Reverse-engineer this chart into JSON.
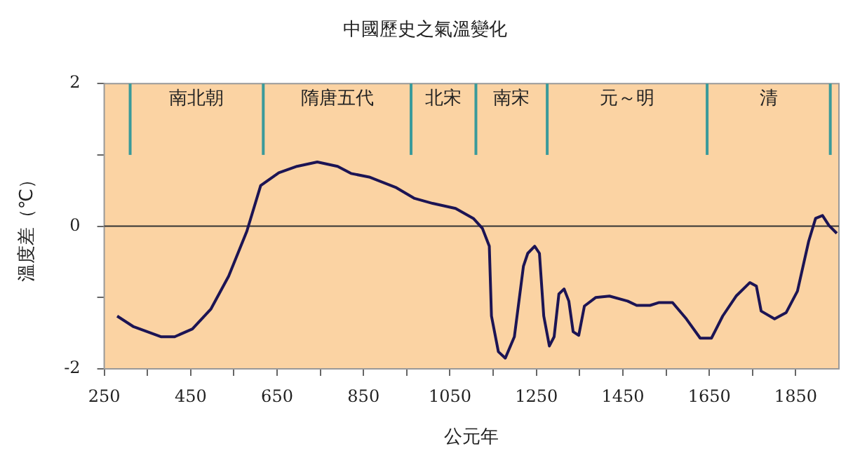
{
  "chart_data": {
    "type": "line",
    "title": "中國歷史之氣溫變化",
    "xlabel": "公元年",
    "ylabel": "溫度差（℃）",
    "x": [
      280,
      318,
      381,
      413,
      454,
      497,
      538,
      580,
      612,
      654,
      696,
      743,
      790,
      821,
      863,
      926,
      968,
      1010,
      1063,
      1104,
      1125,
      1141,
      1146,
      1162,
      1178,
      1199,
      1220,
      1230,
      1246,
      1257,
      1267,
      1280,
      1291,
      1302,
      1314,
      1325,
      1335,
      1348,
      1361,
      1387,
      1419,
      1461,
      1482,
      1513,
      1534,
      1565,
      1597,
      1629,
      1655,
      1681,
      1712,
      1744,
      1759,
      1770,
      1801,
      1828,
      1854,
      1880,
      1896,
      1912,
      1927,
      1945
    ],
    "series": [
      {
        "color": "#1c1454",
        "values": [
          -1.26,
          -1.41,
          -1.55,
          -1.55,
          -1.44,
          -1.16,
          -0.7,
          -0.07,
          0.57,
          0.75,
          0.84,
          0.9,
          0.84,
          0.74,
          0.69,
          0.54,
          0.39,
          0.32,
          0.25,
          0.11,
          -0.03,
          -0.28,
          -1.26,
          -1.76,
          -1.85,
          -1.55,
          -0.56,
          -0.38,
          -0.28,
          -0.38,
          -1.26,
          -1.68,
          -1.55,
          -0.95,
          -0.88,
          -1.05,
          -1.48,
          -1.53,
          -1.12,
          -1.0,
          -0.98,
          -1.05,
          -1.11,
          -1.11,
          -1.07,
          -1.07,
          -1.3,
          -1.57,
          -1.57,
          -1.26,
          -0.98,
          -0.79,
          -0.84,
          -1.19,
          -1.3,
          -1.21,
          -0.91,
          -0.21,
          0.11,
          0.15,
          0.01,
          -0.1
        ]
      }
    ],
    "xlim": [
      250,
      1950
    ],
    "xticks": [
      250,
      {
        "value": 350,
        "label": null
      },
      450,
      {
        "value": 550,
        "label": null
      },
      650,
      {
        "value": 750,
        "label": null
      },
      850,
      {
        "value": 950,
        "label": null
      },
      1050,
      {
        "value": 1150,
        "label": null
      },
      1250,
      {
        "value": 1350,
        "label": null
      },
      1450,
      {
        "value": 1550,
        "label": null
      },
      1650,
      {
        "value": 1750,
        "label": null
      },
      1850
    ],
    "ylim": [
      -2,
      2
    ],
    "yticks": [
      -2,
      {
        "value": -1,
        "label": null
      },
      0,
      {
        "value": 1,
        "label": null
      },
      2
    ],
    "grid": false,
    "legend": false,
    "marker": "none",
    "line_style": "solid",
    "ref_lines": [
      {
        "axis": "y",
        "value": 0,
        "color": "#333333"
      },
      {
        "axis": "x",
        "value": 310,
        "color": "#3a9a9a"
      },
      {
        "axis": "x",
        "value": 618,
        "color": "#3a9a9a"
      },
      {
        "axis": "x",
        "value": 960,
        "color": "#3a9a9a"
      },
      {
        "axis": "x",
        "value": 1110,
        "color": "#3a9a9a"
      },
      {
        "axis": "x",
        "value": 1275,
        "color": "#3a9a9a"
      },
      {
        "axis": "x",
        "value": 1645,
        "color": "#3a9a9a"
      },
      {
        "axis": "x",
        "value": 1930,
        "color": "#3a9a9a"
      }
    ],
    "annotations": [
      "南北朝",
      "隋唐五代",
      "北宋",
      "南宋",
      "元～明",
      "清"
    ]
  }
}
